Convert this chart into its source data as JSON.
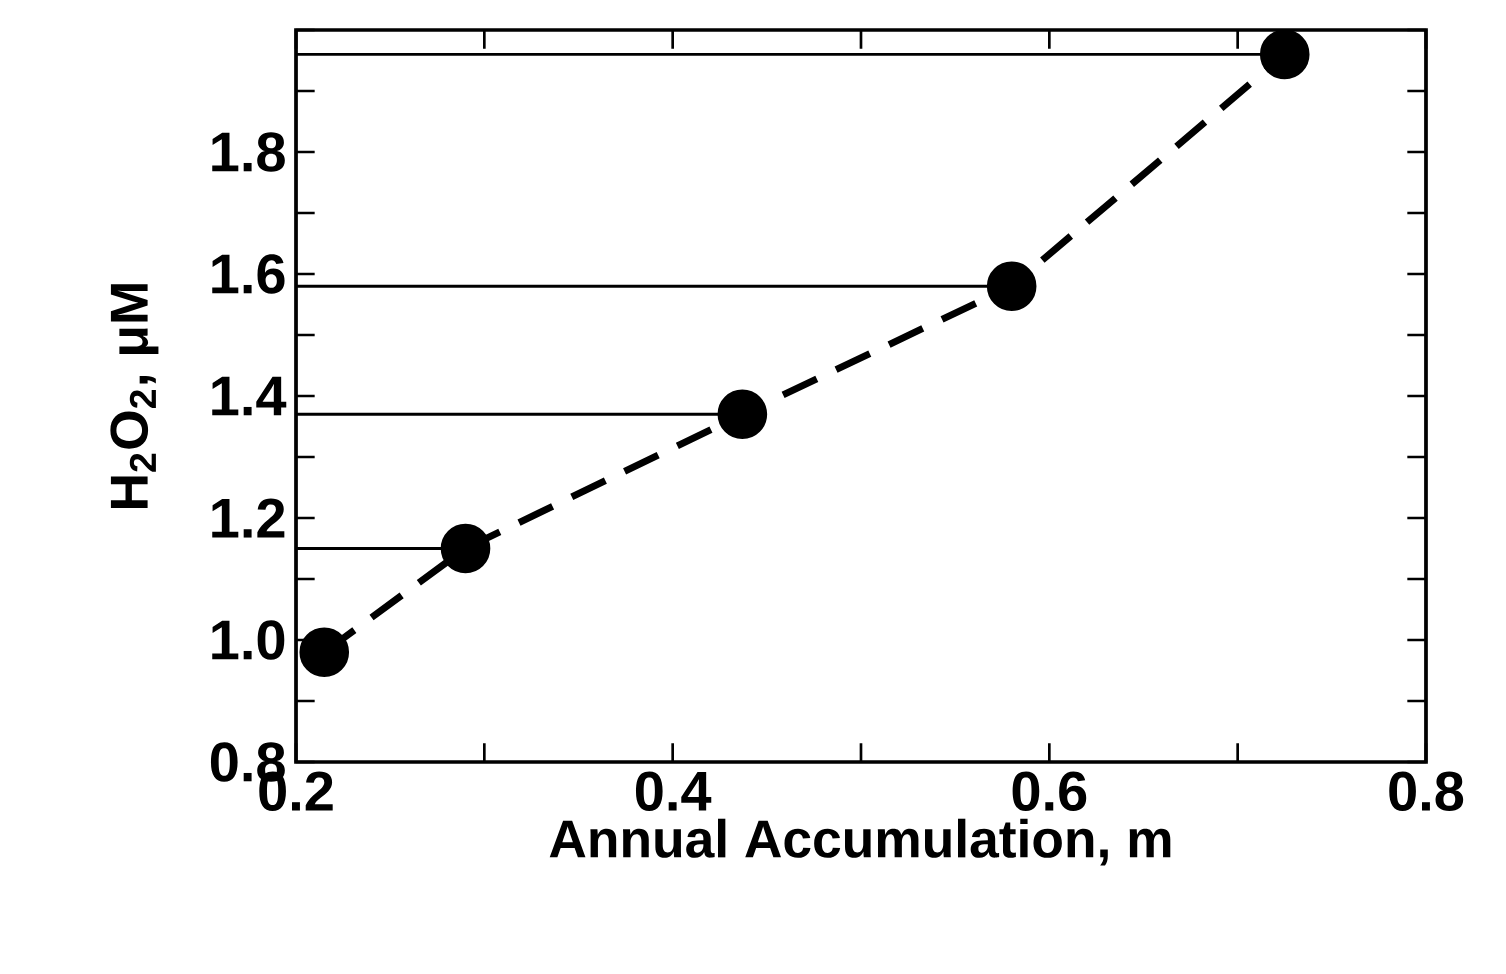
{
  "chart_data": {
    "type": "line",
    "xlabel": "Annual Accumulation, m",
    "ylabel": "H$_{2}$O$_{2}$, μM",
    "series": [
      {
        "color": "#000000",
        "x": [
          0.215,
          0.29,
          0.437,
          0.58,
          0.725
        ],
        "values": [
          0.98,
          1.15,
          1.37,
          1.58,
          1.96
        ]
      }
    ],
    "marker": "circle",
    "line_style": "dashed",
    "xlim": [
      0.2,
      0.8
    ],
    "ylim": [
      0.8,
      2.0
    ],
    "xticks": [
      0.2,
      {
        "value": 0.3,
        "label": null
      },
      0.4,
      {
        "value": 0.5,
        "label": null
      },
      0.6,
      {
        "value": 0.7,
        "label": null
      },
      0.8
    ],
    "yticks": [
      0.8,
      {
        "value": 0.9,
        "label": null
      },
      {
        "value": 1.0,
        "label": "1.0"
      },
      {
        "value": 1.1,
        "label": null
      },
      1.2,
      {
        "value": 1.3,
        "label": null
      },
      1.4,
      {
        "value": 1.5,
        "label": null
      },
      1.6,
      {
        "value": 1.7,
        "label": null
      },
      1.8,
      {
        "value": 1.9,
        "label": null
      },
      {
        "value": 2.0,
        "label": null
      }
    ],
    "ref_lines": [
      {
        "axis": "y",
        "value": 1.15,
        "color": "#000000",
        "line_style": "solid"
      },
      {
        "axis": "y",
        "value": 1.37,
        "color": "#000000",
        "line_style": "solid"
      },
      {
        "axis": "y",
        "value": 1.58,
        "color": "#000000",
        "line_style": "solid"
      },
      {
        "axis": "y",
        "value": 1.96,
        "color": "#000000",
        "line_style": "solid"
      }
    ]
  }
}
